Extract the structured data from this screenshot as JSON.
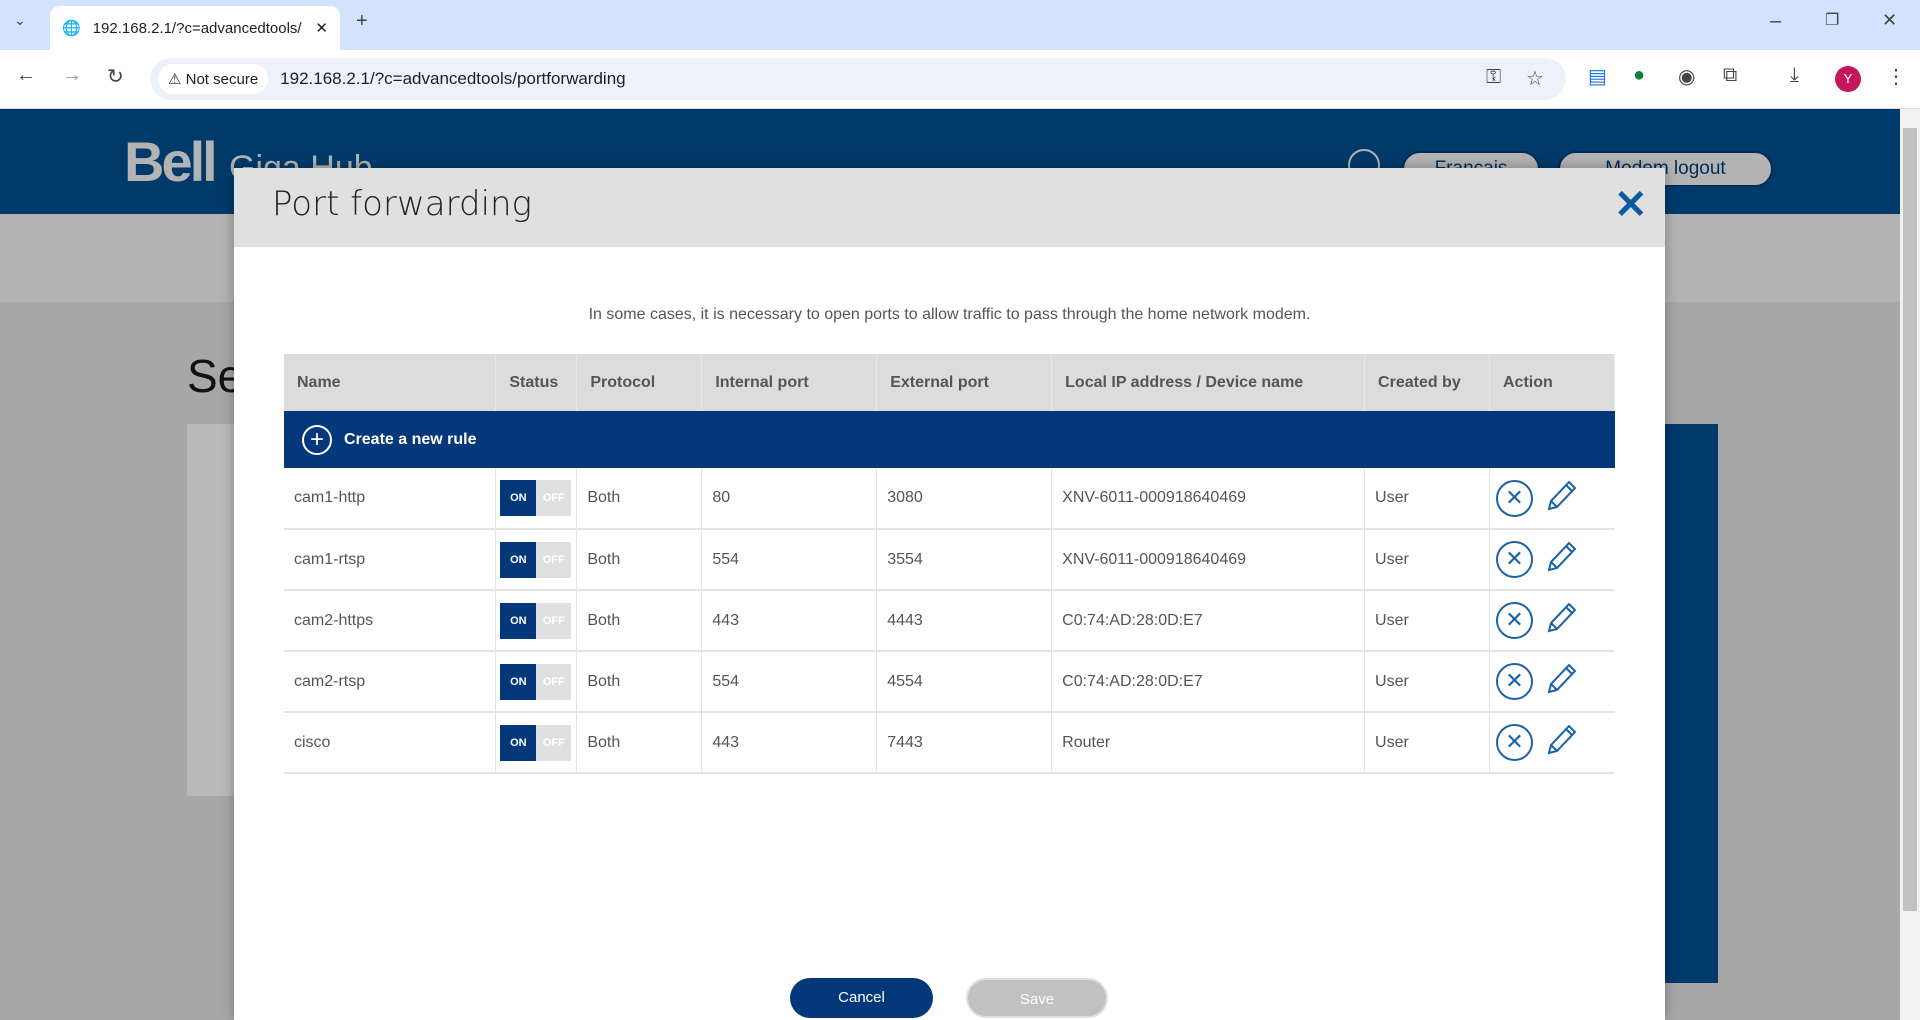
{
  "browser": {
    "tab_title": "192.168.2.1/?c=advancedtools/",
    "security": "Not secure",
    "url": "192.168.2.1/?c=advancedtools/portforwarding",
    "profile": "Y"
  },
  "site": {
    "logo": "Bell",
    "product": "Giga Hub",
    "lang_button": "Français",
    "logout_button": "Modem logout",
    "section_title": "Se"
  },
  "modal": {
    "title": "Port forwarding",
    "description": "In some cases, it is necessary to open ports to allow traffic to pass through the home network modem.",
    "columns": [
      "Name",
      "Status",
      "Protocol",
      "Internal port",
      "External port",
      "Local IP address / Device name",
      "Created by",
      "Action"
    ],
    "create_label": "Create a new rule",
    "toggle": {
      "on": "ON",
      "off": "OFF"
    },
    "rows": [
      {
        "name": "cam1-http",
        "status": "ON",
        "protocol": "Both",
        "internal": "80",
        "external": "3080",
        "device": "XNV-6011-000918640469",
        "created_by": "User"
      },
      {
        "name": "cam1-rtsp",
        "status": "ON",
        "protocol": "Both",
        "internal": "554",
        "external": "3554",
        "device": "XNV-6011-000918640469",
        "created_by": "User"
      },
      {
        "name": "cam2-https",
        "status": "ON",
        "protocol": "Both",
        "internal": "443",
        "external": "4443",
        "device": "C0:74:AD:28:0D:E7",
        "created_by": "User"
      },
      {
        "name": "cam2-rtsp",
        "status": "ON",
        "protocol": "Both",
        "internal": "554",
        "external": "4554",
        "device": "C0:74:AD:28:0D:E7",
        "created_by": "User"
      },
      {
        "name": "cisco",
        "status": "ON",
        "protocol": "Both",
        "internal": "443",
        "external": "7443",
        "device": "Router",
        "created_by": "User"
      }
    ],
    "cancel": "Cancel",
    "save": "Save"
  },
  "colors": {
    "brand": "#003a6b",
    "accent": "#04387a",
    "icon": "#1b62a8"
  }
}
